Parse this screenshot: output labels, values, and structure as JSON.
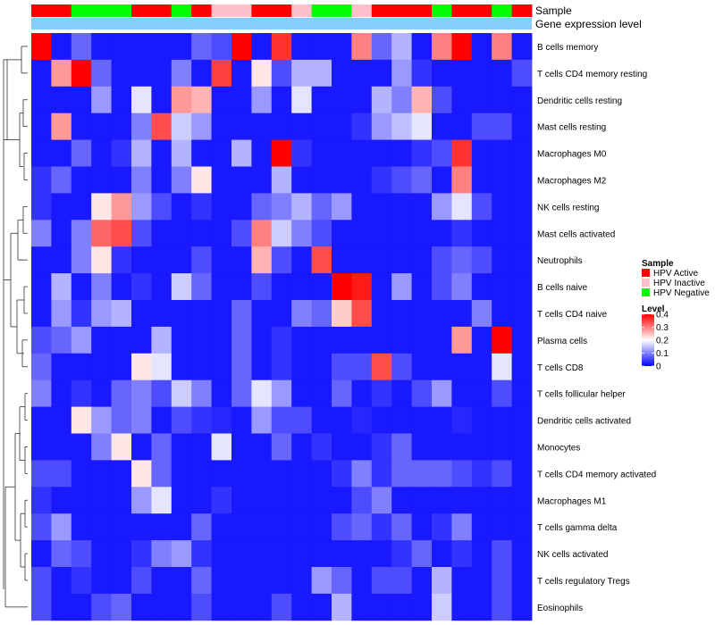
{
  "chart_data": {
    "type": "heatmap",
    "title": "",
    "annotation_tracks": [
      {
        "name": "Sample",
        "label": "Sample"
      },
      {
        "name": "Gene expression level",
        "label": "Gene expression level"
      }
    ],
    "sample_groups": [
      "HPV Active",
      "HPV Active",
      "HPV Negative",
      "HPV Negative",
      "HPV Negative",
      "HPV Active",
      "HPV Active",
      "HPV Negative",
      "HPV Active",
      "HPV Inactive",
      "HPV Inactive",
      "HPV Active",
      "HPV Active",
      "HPV Inactive",
      "HPV Negative",
      "HPV Negative",
      "HPV Inactive",
      "HPV Active",
      "HPV Active",
      "HPV Active",
      "HPV Negative",
      "HPV Active",
      "HPV Active",
      "HPV Negative",
      "HPV Active"
    ],
    "expression_level_color": "#87CEFA",
    "rows": [
      "B cells memory",
      "T cells CD4 memory resting",
      "Dendritic cells resting",
      "Mast cells resting",
      "Macrophages M0",
      "Macrophages M2",
      "NK cells resting",
      "Mast cells activated",
      "Neutrophils",
      "B cells naive",
      "T cells CD4 naive",
      "Plasma cells",
      "T cells CD8",
      "T cells follicular helper",
      "Dendritic cells activated",
      "Monocytes",
      "T cells CD4 memory activated",
      "Macrophages M1",
      "T cells gamma delta",
      "NK cells activated",
      "T cells regulatory  Tregs",
      "Eosinophils"
    ],
    "values": [
      [
        0.4,
        0.02,
        0.08,
        0.02,
        0.02,
        0.02,
        0.02,
        0.02,
        0.08,
        0.06,
        0.4,
        0.02,
        0.36,
        0.02,
        0.02,
        0.02,
        0.3,
        0.08,
        0.14,
        0.02,
        0.3,
        0.4,
        0.02,
        0.3,
        0.02
      ],
      [
        0.02,
        0.28,
        0.4,
        0.08,
        0.02,
        0.02,
        0.02,
        0.1,
        0.02,
        0.35,
        0.02,
        0.22,
        0.06,
        0.14,
        0.14,
        0.02,
        0.02,
        0.02,
        0.12,
        0.04,
        0.02,
        0.02,
        0.02,
        0.02,
        0.06
      ],
      [
        0.02,
        0.02,
        0.02,
        0.12,
        0.02,
        0.18,
        0.02,
        0.28,
        0.26,
        0.02,
        0.02,
        0.12,
        0.02,
        0.18,
        0.02,
        0.02,
        0.02,
        0.14,
        0.1,
        0.26,
        0.06,
        0.02,
        0.02,
        0.02,
        0.02
      ],
      [
        0.02,
        0.28,
        0.02,
        0.02,
        0.02,
        0.1,
        0.34,
        0.16,
        0.12,
        0.02,
        0.02,
        0.02,
        0.02,
        0.02,
        0.02,
        0.02,
        0.04,
        0.12,
        0.15,
        0.18,
        0.02,
        0.02,
        0.06,
        0.06,
        0.02
      ],
      [
        0.02,
        0.02,
        0.08,
        0.02,
        0.04,
        0.14,
        0.02,
        0.14,
        0.02,
        0.02,
        0.14,
        0.02,
        0.4,
        0.04,
        0.02,
        0.02,
        0.02,
        0.02,
        0.02,
        0.04,
        0.06,
        0.36,
        0.02,
        0.02,
        0.02
      ],
      [
        0.04,
        0.08,
        0.02,
        0.02,
        0.02,
        0.1,
        0.02,
        0.1,
        0.22,
        0.02,
        0.02,
        0.02,
        0.14,
        0.02,
        0.02,
        0.02,
        0.02,
        0.04,
        0.06,
        0.08,
        0.02,
        0.3,
        0.02,
        0.02,
        0.02
      ],
      [
        0.04,
        0.02,
        0.02,
        0.22,
        0.28,
        0.12,
        0.06,
        0.02,
        0.04,
        0.02,
        0.02,
        0.08,
        0.1,
        0.14,
        0.08,
        0.12,
        0.02,
        0.02,
        0.02,
        0.02,
        0.12,
        0.18,
        0.06,
        0.02,
        0.02
      ],
      [
        0.1,
        0.02,
        0.1,
        0.32,
        0.34,
        0.06,
        0.02,
        0.02,
        0.02,
        0.02,
        0.06,
        0.3,
        0.16,
        0.1,
        0.06,
        0.02,
        0.02,
        0.02,
        0.02,
        0.02,
        0.02,
        0.04,
        0.02,
        0.02,
        0.02
      ],
      [
        0.02,
        0.02,
        0.1,
        0.22,
        0.04,
        0.02,
        0.02,
        0.02,
        0.06,
        0.02,
        0.02,
        0.26,
        0.06,
        0.02,
        0.34,
        0.02,
        0.02,
        0.02,
        0.02,
        0.02,
        0.06,
        0.08,
        0.06,
        0.02,
        0.02
      ],
      [
        0.02,
        0.14,
        0.02,
        0.1,
        0.02,
        0.04,
        0.02,
        0.16,
        0.08,
        0.02,
        0.02,
        0.06,
        0.02,
        0.02,
        0.02,
        0.4,
        0.38,
        0.02,
        0.12,
        0.02,
        0.06,
        0.1,
        0.02,
        0.02,
        0.02
      ],
      [
        0.02,
        0.12,
        0.04,
        0.12,
        0.14,
        0.02,
        0.02,
        0.02,
        0.02,
        0.02,
        0.08,
        0.02,
        0.02,
        0.1,
        0.08,
        0.24,
        0.34,
        0.02,
        0.02,
        0.02,
        0.02,
        0.02,
        0.1,
        0.02,
        0.02
      ],
      [
        0.06,
        0.08,
        0.12,
        0.02,
        0.02,
        0.02,
        0.14,
        0.02,
        0.02,
        0.02,
        0.08,
        0.02,
        0.04,
        0.02,
        0.02,
        0.02,
        0.02,
        0.02,
        0.02,
        0.02,
        0.02,
        0.28,
        0.02,
        0.4,
        0.02
      ],
      [
        0.08,
        0.02,
        0.02,
        0.02,
        0.02,
        0.22,
        0.18,
        0.02,
        0.02,
        0.02,
        0.08,
        0.02,
        0.04,
        0.02,
        0.02,
        0.06,
        0.06,
        0.34,
        0.06,
        0.02,
        0.02,
        0.02,
        0.02,
        0.18,
        0.02
      ],
      [
        0.1,
        0.02,
        0.04,
        0.02,
        0.08,
        0.1,
        0.06,
        0.16,
        0.1,
        0.02,
        0.08,
        0.18,
        0.12,
        0.02,
        0.02,
        0.08,
        0.02,
        0.04,
        0.02,
        0.06,
        0.12,
        0.02,
        0.02,
        0.06,
        0.02
      ],
      [
        0.02,
        0.02,
        0.22,
        0.12,
        0.08,
        0.1,
        0.02,
        0.06,
        0.04,
        0.03,
        0.02,
        0.12,
        0.06,
        0.06,
        0.02,
        0.02,
        0.03,
        0.02,
        0.02,
        0.02,
        0.02,
        0.03,
        0.02,
        0.02,
        0.02
      ],
      [
        0.02,
        0.02,
        0.02,
        0.1,
        0.22,
        0.02,
        0.08,
        0.02,
        0.02,
        0.18,
        0.02,
        0.02,
        0.08,
        0.02,
        0.04,
        0.02,
        0.02,
        0.04,
        0.08,
        0.02,
        0.02,
        0.02,
        0.02,
        0.02,
        0.02
      ],
      [
        0.06,
        0.06,
        0.02,
        0.02,
        0.02,
        0.22,
        0.08,
        0.02,
        0.02,
        0.02,
        0.02,
        0.02,
        0.02,
        0.02,
        0.02,
        0.04,
        0.1,
        0.04,
        0.08,
        0.08,
        0.08,
        0.06,
        0.04,
        0.06,
        0.02
      ],
      [
        0.04,
        0.02,
        0.02,
        0.02,
        0.02,
        0.12,
        0.18,
        0.02,
        0.02,
        0.04,
        0.02,
        0.02,
        0.02,
        0.02,
        0.02,
        0.02,
        0.06,
        0.1,
        0.02,
        0.02,
        0.02,
        0.02,
        0.02,
        0.02,
        0.02
      ],
      [
        0.06,
        0.12,
        0.02,
        0.02,
        0.02,
        0.02,
        0.02,
        0.02,
        0.08,
        0.02,
        0.02,
        0.02,
        0.02,
        0.02,
        0.02,
        0.06,
        0.08,
        0.04,
        0.08,
        0.02,
        0.04,
        0.1,
        0.02,
        0.02,
        0.02
      ],
      [
        0.02,
        0.08,
        0.06,
        0.02,
        0.02,
        0.04,
        0.1,
        0.12,
        0.04,
        0.02,
        0.02,
        0.02,
        0.02,
        0.02,
        0.02,
        0.02,
        0.02,
        0.02,
        0.04,
        0.08,
        0.02,
        0.04,
        0.02,
        0.06,
        0.02
      ],
      [
        0.06,
        0.02,
        0.04,
        0.02,
        0.02,
        0.06,
        0.02,
        0.02,
        0.08,
        0.02,
        0.02,
        0.02,
        0.02,
        0.02,
        0.12,
        0.08,
        0.02,
        0.06,
        0.06,
        0.02,
        0.14,
        0.02,
        0.02,
        0.06,
        0.02
      ],
      [
        0.06,
        0.02,
        0.02,
        0.06,
        0.08,
        0.02,
        0.02,
        0.02,
        0.06,
        0.02,
        0.02,
        0.02,
        0.06,
        0.02,
        0.02,
        0.14,
        0.02,
        0.02,
        0.02,
        0.02,
        0.16,
        0.02,
        0.02,
        0.06,
        0.02
      ]
    ],
    "legend": {
      "sample_title": "Sample",
      "sample_items": [
        {
          "label": "HPV Active",
          "color": "#FF0000"
        },
        {
          "label": "HPV Inactive",
          "color": "#FFC0CB"
        },
        {
          "label": "HPV Negative",
          "color": "#00FF00"
        }
      ],
      "level_title": "Level",
      "level_ticks": [
        "0.4",
        "0.3",
        "0.2",
        "0.1",
        "0"
      ],
      "level_range": [
        0,
        0.4
      ]
    },
    "color_scale": {
      "low": "#0000FF",
      "mid": "#FFFFFF",
      "high": "#FF0000",
      "mid_value": 0.2
    }
  }
}
